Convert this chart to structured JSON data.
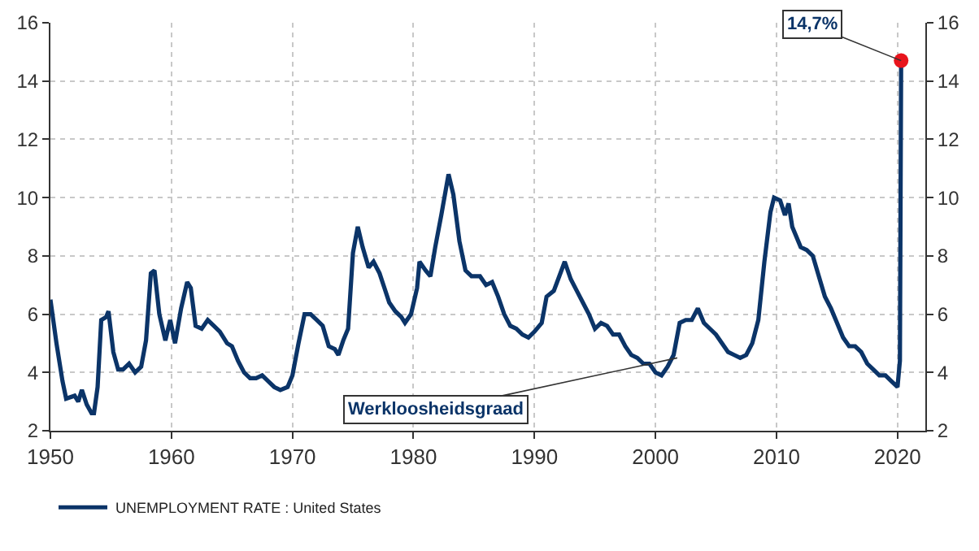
{
  "chart_data": {
    "type": "line",
    "x": [
      1950.0,
      1950.5,
      1951.0,
      1951.3,
      1952.0,
      1952.3,
      1952.6,
      1953.0,
      1953.4,
      1953.6,
      1953.9,
      1954.2,
      1954.6,
      1954.8,
      1955.2,
      1955.6,
      1956.0,
      1956.5,
      1957.0,
      1957.5,
      1957.9,
      1958.3,
      1958.6,
      1959.0,
      1959.5,
      1959.9,
      1960.3,
      1960.8,
      1961.3,
      1961.6,
      1962.0,
      1962.5,
      1963.0,
      1963.5,
      1964.0,
      1964.6,
      1965.0,
      1965.5,
      1966.0,
      1966.5,
      1967.0,
      1967.5,
      1968.0,
      1968.5,
      1969.0,
      1969.6,
      1970.0,
      1970.5,
      1971.0,
      1971.5,
      1972.0,
      1972.5,
      1973.0,
      1973.5,
      1973.8,
      1974.2,
      1974.6,
      1975.0,
      1975.4,
      1975.8,
      1976.3,
      1976.7,
      1977.2,
      1977.6,
      1978.0,
      1978.5,
      1979.0,
      1979.3,
      1979.8,
      1980.3,
      1980.5,
      1981.0,
      1981.4,
      1981.8,
      1982.3,
      1982.9,
      1983.3,
      1983.8,
      1984.3,
      1984.8,
      1985.5,
      1986.0,
      1986.5,
      1987.0,
      1987.5,
      1988.0,
      1988.5,
      1989.0,
      1989.5,
      1990.0,
      1990.6,
      1991.0,
      1991.6,
      1992.5,
      1993.0,
      1993.5,
      1994.0,
      1994.5,
      1995.0,
      1995.5,
      1996.0,
      1996.5,
      1997.0,
      1997.5,
      1998.0,
      1998.5,
      1999.0,
      1999.5,
      2000.0,
      2000.5,
      2001.0,
      2001.5,
      2002.0,
      2002.5,
      2003.0,
      2003.5,
      2004.0,
      2004.5,
      2005.0,
      2005.5,
      2006.0,
      2006.5,
      2007.0,
      2007.5,
      2008.0,
      2008.5,
      2009.0,
      2009.5,
      2009.8,
      2010.3,
      2010.7,
      2011.0,
      2011.3,
      2012.0,
      2012.5,
      2013.0,
      2013.5,
      2014.0,
      2014.5,
      2015.0,
      2015.5,
      2016.0,
      2016.5,
      2017.0,
      2017.5,
      2018.0,
      2018.5,
      2019.0,
      2019.5,
      2020.0,
      2020.2,
      2020.3
    ],
    "series": [
      {
        "name": "UNEMPLOYMENT RATE : United States",
        "color": "#0b3468",
        "values": [
          6.5,
          5.0,
          3.7,
          3.1,
          3.2,
          3.0,
          3.4,
          2.9,
          2.6,
          2.6,
          3.5,
          5.8,
          5.9,
          6.1,
          4.7,
          4.1,
          4.1,
          4.3,
          4.0,
          4.2,
          5.1,
          7.4,
          7.5,
          6.0,
          5.1,
          5.8,
          5.0,
          6.2,
          7.1,
          6.9,
          5.6,
          5.5,
          5.8,
          5.6,
          5.4,
          5.0,
          4.9,
          4.4,
          4.0,
          3.8,
          3.8,
          3.9,
          3.7,
          3.5,
          3.4,
          3.5,
          3.9,
          5.0,
          6.0,
          6.0,
          5.8,
          5.6,
          4.9,
          4.8,
          4.6,
          5.1,
          5.5,
          8.1,
          9.0,
          8.3,
          7.6,
          7.8,
          7.4,
          6.9,
          6.4,
          6.1,
          5.9,
          5.7,
          6.0,
          6.9,
          7.8,
          7.5,
          7.3,
          8.3,
          9.4,
          10.8,
          10.1,
          8.5,
          7.5,
          7.3,
          7.3,
          7.0,
          7.1,
          6.6,
          6.0,
          5.6,
          5.5,
          5.3,
          5.2,
          5.4,
          5.7,
          6.6,
          6.8,
          7.8,
          7.2,
          6.8,
          6.4,
          6.0,
          5.5,
          5.7,
          5.6,
          5.3,
          5.3,
          4.9,
          4.6,
          4.5,
          4.3,
          4.3,
          4.0,
          3.9,
          4.2,
          4.6,
          5.7,
          5.8,
          5.8,
          6.2,
          5.7,
          5.5,
          5.3,
          5.0,
          4.7,
          4.6,
          4.5,
          4.6,
          5.0,
          5.8,
          7.8,
          9.5,
          10.0,
          9.9,
          9.4,
          9.8,
          9.0,
          8.3,
          8.2,
          8.0,
          7.3,
          6.6,
          6.2,
          5.7,
          5.2,
          4.9,
          4.9,
          4.7,
          4.3,
          4.1,
          3.9,
          3.9,
          3.7,
          3.5,
          4.4,
          14.7
        ]
      },
      {
        "type": "scatter",
        "color": "#e8141c",
        "x": [
          2020.3
        ],
        "values": [
          14.7
        ],
        "marker": "circle"
      }
    ],
    "xlim": [
      1950,
      2022.3
    ],
    "xticks": [
      1950,
      1960,
      1970,
      1980,
      1990,
      2000,
      2010,
      2020
    ],
    "ylim": [
      2,
      16
    ],
    "yticks": [
      2,
      4,
      6,
      8,
      10,
      12,
      14,
      16
    ],
    "y2lim": [
      2,
      16
    ],
    "y2ticks": [
      2,
      4,
      6,
      8,
      10,
      12,
      14,
      16
    ],
    "annotations": [
      {
        "text": "14,7%",
        "x": 2020.3,
        "y": 14.7
      },
      {
        "text": "Werkloosheidsgraad",
        "x": 2001.8,
        "y": 4.5
      }
    ],
    "grid": true,
    "legend": "bottom left",
    "line_style": "solid"
  }
}
